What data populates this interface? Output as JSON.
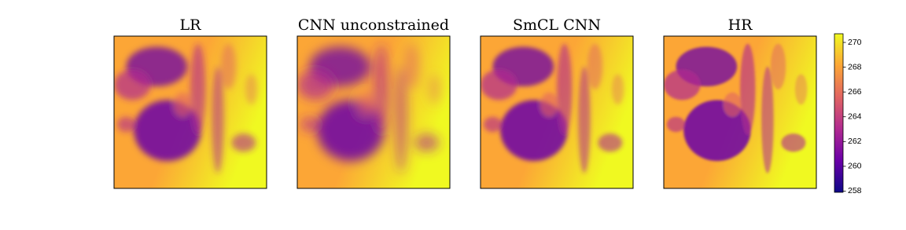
{
  "chart_data": {
    "type": "heatmap",
    "panels": [
      {
        "title": "LR"
      },
      {
        "title": "CNN unconstrained"
      },
      {
        "title": "SmCL CNN"
      },
      {
        "title": "HR"
      }
    ],
    "colormap": [
      "#0d0887",
      "#6a00a8",
      "#b12a90",
      "#e16462",
      "#fca636",
      "#f0f921"
    ],
    "clim": [
      257.9,
      270.7
    ],
    "cticks": [
      258,
      260,
      262,
      264,
      266,
      268,
      270
    ]
  }
}
